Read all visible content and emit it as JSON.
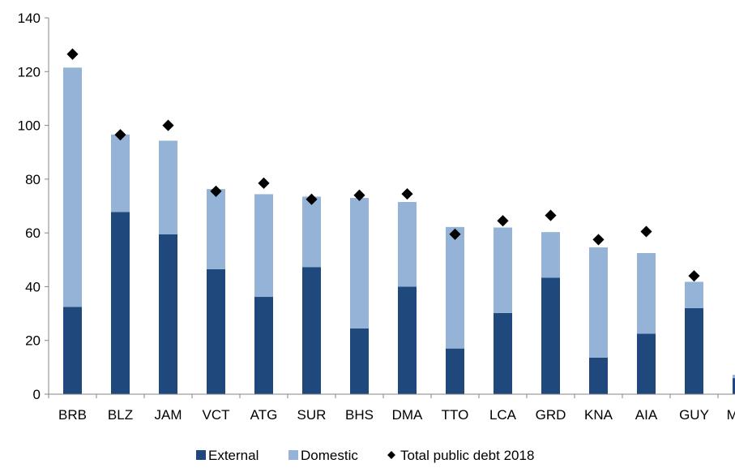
{
  "chart_data": {
    "type": "bar",
    "stacked": true,
    "categories": [
      "BRB",
      "BLZ",
      "JAM",
      "VCT",
      "ATG",
      "SUR",
      "BHS",
      "DMA",
      "TTO",
      "LCA",
      "GRD",
      "KNA",
      "AIA",
      "GUY",
      "MSR"
    ],
    "series": [
      {
        "name": "External",
        "kind": "bar",
        "color": "#1f497d",
        "values": [
          32.5,
          67.8,
          59.5,
          46.5,
          36.2,
          47.3,
          24.5,
          40.0,
          17.0,
          30.2,
          43.3,
          13.6,
          22.5,
          32.0,
          6.0
        ]
      },
      {
        "name": "Domestic",
        "kind": "bar",
        "color": "#95b3d7",
        "values": [
          89.0,
          28.8,
          34.8,
          29.8,
          38.2,
          26.2,
          48.5,
          31.5,
          45.2,
          31.8,
          17.0,
          41.0,
          30.0,
          9.8,
          1.2
        ]
      },
      {
        "name": "Total public debt 2018",
        "kind": "marker",
        "color": "#000000",
        "values": [
          126.5,
          96.5,
          100.0,
          75.5,
          78.5,
          72.5,
          74.0,
          74.5,
          59.5,
          64.5,
          66.5,
          57.5,
          60.5,
          44.0,
          7.0
        ]
      }
    ],
    "ylim": [
      0,
      140
    ],
    "yticks": [
      0,
      20,
      40,
      60,
      80,
      100,
      120,
      140
    ],
    "grid": false,
    "legend_position": "bottom"
  }
}
